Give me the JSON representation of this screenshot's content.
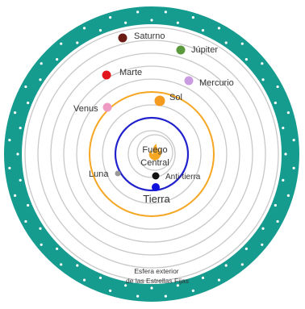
{
  "bodies": {
    "saturno": {
      "label": "Saturno",
      "color": "#6b1a14"
    },
    "jupiter": {
      "label": "Júpiter",
      "color": "#5a9a3c"
    },
    "marte": {
      "label": "Marte",
      "color": "#e3151c"
    },
    "mercurio": {
      "label": "Mercurio",
      "color": "#c99be0"
    },
    "venus": {
      "label": "Venus",
      "color": "#ef9ac3"
    },
    "sol": {
      "label": "Sol",
      "color": "#f39a1f"
    },
    "luna": {
      "label": "Luna",
      "color": "#999999"
    },
    "antitierra": {
      "label": "Anti-tierra",
      "color": "#111111"
    },
    "tierra": {
      "label": "Tierra",
      "color": "#1111dd"
    }
  },
  "center": {
    "line1": "Fuego",
    "line2": "Central",
    "color": "#f5a623"
  },
  "outer_sphere": {
    "line1": "Esfera exterior",
    "line2": "de las Estrellas Fijas",
    "color": "#169b8f"
  },
  "orbit_colors": {
    "sun_orbit": "#f5a623",
    "earth_orbit": "#2222cc",
    "grey": "#c8c8c8"
  }
}
